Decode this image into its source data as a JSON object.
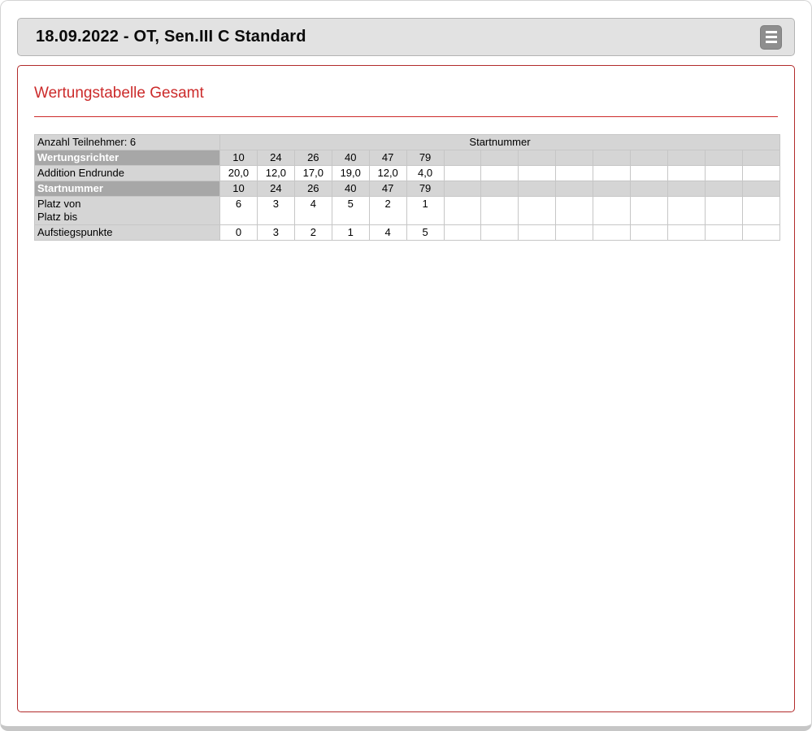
{
  "header": {
    "title": "18.09.2022 - OT, Sen.III C Standard",
    "menu_icon": "hamburger-icon"
  },
  "panel": {
    "heading": "Wertungstabelle Gesamt"
  },
  "table": {
    "total_data_columns": 15,
    "participants_label": "Anzahl Teilnehmer: 6",
    "startnummer_span_label": "Startnummer",
    "row_labels": {
      "judges": "Wertungsrichter",
      "addition": "Addition Endrunde",
      "startnummer": "Startnummer",
      "platz_von": "Platz von",
      "platz_bis": "Platz bis",
      "aufstieg": "Aufstiegspunkte"
    },
    "judge_numbers": [
      "10",
      "24",
      "26",
      "40",
      "47",
      "79"
    ],
    "addition_endrunde": [
      "20,0",
      "12,0",
      "17,0",
      "19,0",
      "12,0",
      "4,0"
    ],
    "startnummern": [
      "10",
      "24",
      "26",
      "40",
      "47",
      "79"
    ],
    "platz_von_values": [
      "6",
      "3",
      "4",
      "5",
      "2",
      "1"
    ],
    "aufstiegspunkte": [
      "0",
      "3",
      "2",
      "1",
      "4",
      "5"
    ]
  },
  "colors": {
    "accent_red": "#cc2b2b",
    "panel_border_red": "#b22b2b",
    "header_bar_bg": "#e2e2e2",
    "menu_button_bg": "#8e8e8e",
    "dark_row_bg": "#a7a7a7",
    "light_cell_bg": "#d5d5d5"
  }
}
